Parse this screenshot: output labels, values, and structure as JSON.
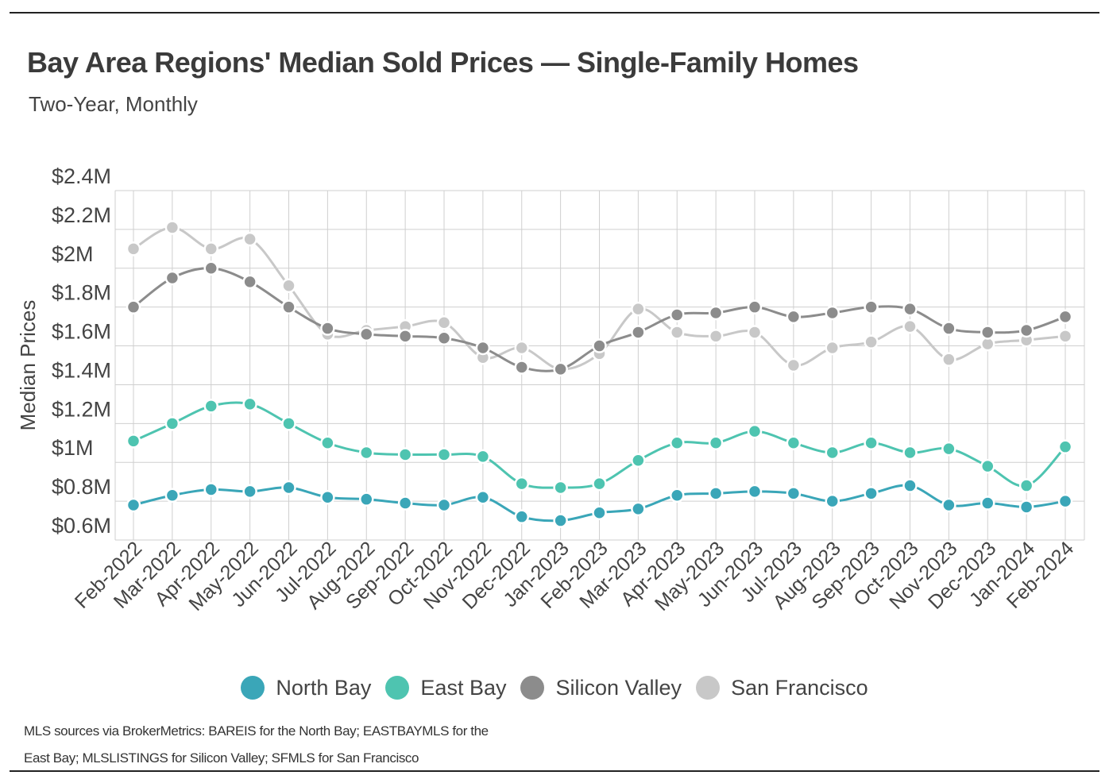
{
  "title": "Bay Area Regions' Median Sold Prices — Single-Family Homes",
  "subtitle": "Two-Year, Monthly",
  "source": "MLS sources via BrokerMetrics: BAREIS for the North Bay; EASTBAYMLS for the East Bay; MLSLISTINGS for Silicon Valley; SFMLS for San Francisco",
  "colors": {
    "North Bay": "#3aa6b8",
    "East Bay": "#4ec4b0",
    "Silicon Valley": "#8c8c8c",
    "San Francisco": "#c8c8c8"
  },
  "chart_data": {
    "type": "line",
    "title": "Bay Area Regions' Median Sold Prices — Single-Family Homes",
    "subtitle": "Two-Year, Monthly",
    "xlabel": "",
    "ylabel": "Median Prices",
    "ylim": [
      0.6,
      2.4
    ],
    "yticks": [
      "$2.4M",
      "$2.2M",
      "$2M",
      "$1.8M",
      "$1.6M",
      "$1.4M",
      "$1.2M",
      "$1M",
      "$0.8M",
      "$0.6M"
    ],
    "grid": true,
    "legend": "bottom",
    "categories": [
      "Feb-2022",
      "Mar-2022",
      "Apr-2022",
      "May-2022",
      "Jun-2022",
      "Jul-2022",
      "Aug-2022",
      "Sep-2022",
      "Oct-2022",
      "Nov-2022",
      "Dec-2022",
      "Jan-2023",
      "Feb-2023",
      "Mar-2023",
      "Apr-2023",
      "May-2023",
      "Jun-2023",
      "Jul-2023",
      "Aug-2023",
      "Sep-2023",
      "Oct-2023",
      "Nov-2023",
      "Dec-2023",
      "Jan-2024",
      "Feb-2024"
    ],
    "series": [
      {
        "name": "North Bay",
        "values": [
          0.78,
          0.83,
          0.86,
          0.85,
          0.87,
          0.82,
          0.81,
          0.79,
          0.78,
          0.82,
          0.72,
          0.7,
          0.74,
          0.76,
          0.83,
          0.84,
          0.85,
          0.84,
          0.8,
          0.84,
          0.88,
          0.78,
          0.79,
          0.77,
          0.8
        ]
      },
      {
        "name": "East Bay",
        "values": [
          1.11,
          1.2,
          1.29,
          1.3,
          1.2,
          1.1,
          1.05,
          1.04,
          1.04,
          1.03,
          0.89,
          0.87,
          0.89,
          1.01,
          1.1,
          1.1,
          1.16,
          1.1,
          1.05,
          1.1,
          1.05,
          1.07,
          0.98,
          0.88,
          1.08
        ]
      },
      {
        "name": "Silicon Valley",
        "values": [
          1.8,
          1.95,
          2.0,
          1.93,
          1.8,
          1.69,
          1.66,
          1.65,
          1.64,
          1.59,
          1.49,
          1.48,
          1.6,
          1.67,
          1.76,
          1.77,
          1.8,
          1.75,
          1.77,
          1.8,
          1.79,
          1.69,
          1.67,
          1.68,
          1.75
        ]
      },
      {
        "name": "San Francisco",
        "values": [
          2.1,
          2.21,
          2.1,
          2.15,
          1.91,
          1.66,
          1.68,
          1.7,
          1.72,
          1.54,
          1.59,
          1.48,
          1.56,
          1.79,
          1.67,
          1.65,
          1.67,
          1.5,
          1.59,
          1.62,
          1.7,
          1.53,
          1.61,
          1.63,
          1.65
        ]
      }
    ]
  }
}
